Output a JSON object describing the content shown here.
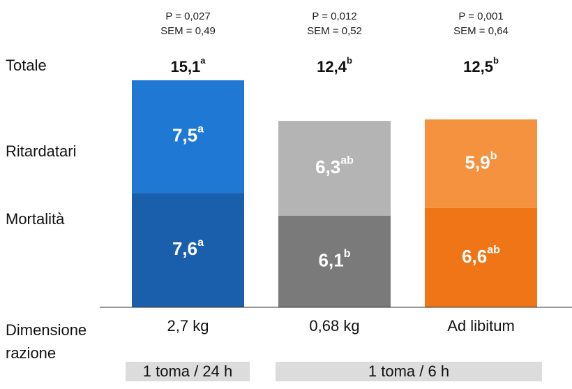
{
  "chart_data": {
    "type": "stacked_bar",
    "categories": [
      "2,7 kg",
      "0,68 kg",
      "Ad libitum"
    ],
    "x_label": "Dimensione razione",
    "series": [
      {
        "name": "Mortalità",
        "values": [
          7.6,
          6.1,
          6.6
        ],
        "value_labels": [
          "7,6",
          "6,1",
          "6,6"
        ],
        "letters": [
          "a",
          "b",
          "ab"
        ],
        "colors": [
          "#1a5fab",
          "#7a7a7a",
          "#f07516"
        ]
      },
      {
        "name": "Ritardatari",
        "values": [
          7.5,
          6.3,
          5.9
        ],
        "value_labels": [
          "7,5",
          "6,3",
          "5,9"
        ],
        "letters": [
          "a",
          "ab",
          "b"
        ],
        "colors": [
          "#1f79d4",
          "#b4b4b4",
          "#f5923f"
        ]
      }
    ],
    "totals": {
      "name": "Totale",
      "values": [
        15.1,
        12.4,
        12.5
      ],
      "value_labels": [
        "15,1",
        "12,4",
        "12,5"
      ],
      "letters": [
        "a",
        "b",
        "b"
      ]
    },
    "stats": [
      {
        "p": "P = 0,027",
        "sem": "SEM = 0,49"
      },
      {
        "p": "P = 0,012",
        "sem": "SEM = 0,52"
      },
      {
        "p": "P = 0,001",
        "sem": "SEM = 0,64"
      }
    ],
    "groups": [
      "1 toma / 24 h",
      "1 toma / 6 h"
    ]
  }
}
